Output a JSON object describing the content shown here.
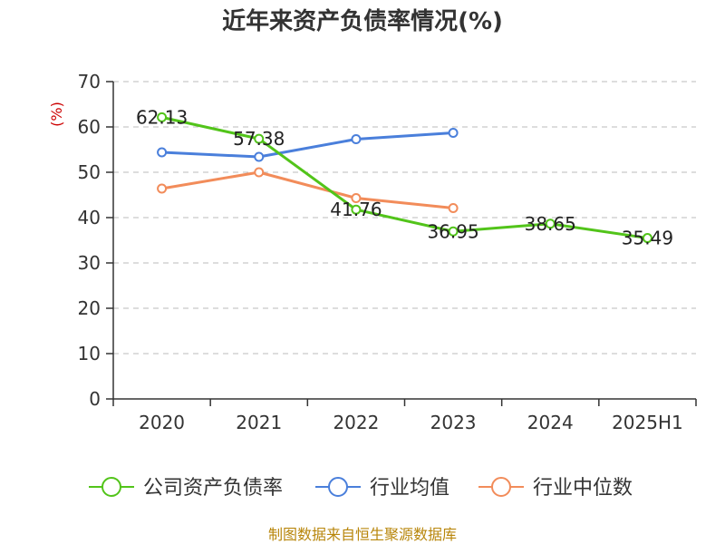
{
  "chart_data": {
    "type": "line",
    "title": "近年来资产负债率情况(%)",
    "ylabel": "(%)",
    "ylim": [
      0,
      70
    ],
    "yticks": [
      0,
      10,
      20,
      30,
      40,
      50,
      60,
      70
    ],
    "grid": true,
    "legend_position": "bottom",
    "categories": [
      "2020",
      "2021",
      "2022",
      "2023",
      "2024",
      "2025H1"
    ],
    "series": [
      {
        "name": "公司资产负债率",
        "color": "#52c41a",
        "values": [
          62.13,
          57.38,
          41.76,
          36.95,
          38.65,
          35.49
        ],
        "labels": [
          "62.13",
          "57.38",
          "41.76",
          "36.95",
          "38.65",
          "35.49"
        ]
      },
      {
        "name": "行业均值",
        "color": "#4a7fdb",
        "values": [
          54.4,
          53.4,
          57.3,
          58.7,
          null,
          null
        ]
      },
      {
        "name": "行业中位数",
        "color": "#f28c5a",
        "values": [
          46.4,
          50.0,
          44.3,
          42.1,
          null,
          null
        ]
      }
    ],
    "source": "制图数据来自恒生聚源数据库"
  }
}
